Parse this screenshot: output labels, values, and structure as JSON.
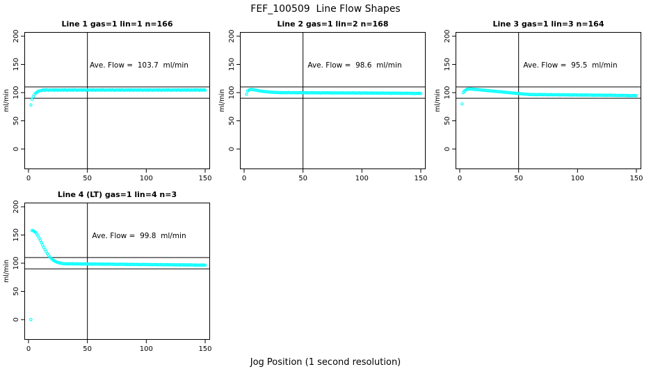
{
  "page": {
    "title": "FEF_100509  Line Flow Shapes",
    "xlabel": "Jog Position (1 second resolution)"
  },
  "colors": {
    "points": "#00FFFF",
    "lines": "#000000"
  },
  "chart_data": [
    {
      "type": "scatter",
      "title": "Line 1 gas=1 lin=1 n=166",
      "annotation": "Ave. Flow =  103.7  ml/min",
      "ave_flow_ml_min": 103.7,
      "n": 166,
      "ylabel": "ml/min",
      "xlim": [
        0,
        150
      ],
      "ylim": [
        0,
        200
      ],
      "xticks": [
        0,
        50,
        100,
        150
      ],
      "yticks": [
        0,
        50,
        100,
        150,
        200
      ],
      "hlines": [
        90,
        110
      ],
      "vlines": [
        50
      ],
      "point_color": "#00FFFF",
      "series": {
        "x_start": 2,
        "x_step": 1,
        "y": [
          78,
          88,
          93,
          96.5,
          99,
          100.5,
          102,
          102.8,
          103.4,
          103.8,
          104.5,
          104.9,
          104.2,
          105.1,
          104.6,
          104.1,
          104.8,
          104.4,
          104.5,
          104.9,
          104.2,
          105.1,
          104.6,
          104.1,
          104.8,
          104.4,
          104.5,
          104.9,
          104.2,
          105.1,
          104.6,
          104.1,
          104.8,
          104.4,
          104.5,
          104.9,
          104.2,
          105.1,
          104.6,
          104.1,
          104.8,
          104.4,
          104.5,
          104.9,
          104.2,
          105.1,
          104.6,
          104.1,
          104.8,
          104.4,
          104.5,
          104.9,
          104.2,
          105.1,
          104.6,
          104.1,
          104.8,
          104.4,
          104.5,
          104.9,
          104.2,
          105.1,
          104.6,
          104.1,
          104.8,
          104.4,
          104.5,
          104.9,
          104.2,
          105.1,
          104.6,
          104.1,
          104.8,
          104.4,
          104.5,
          104.9,
          104.2,
          105.1,
          104.6,
          104.1,
          104.8,
          104.4,
          104.5,
          104.9,
          104.2,
          105.1,
          104.6,
          104.1,
          104.8,
          104.4,
          104.5,
          104.9,
          104.2,
          105.1,
          104.6,
          104.1,
          104.8,
          104.4,
          104.5,
          104.9,
          104.2,
          105.1,
          104.6,
          104.1,
          104.8,
          104.4,
          104.5,
          104.9,
          104.2,
          105.1,
          104.6,
          104.1,
          104.8,
          104.4,
          104.5,
          104.9,
          104.2,
          105.1,
          104.6,
          104.1,
          104.8,
          104.4,
          104.5,
          104.9,
          104.2,
          105.1,
          104.6,
          104.1,
          104.8,
          104.4,
          104.5,
          104.9,
          104.2,
          105.1,
          104.6,
          104.1,
          104.8,
          104.4,
          104.5,
          104.9,
          104.2,
          105.1,
          104.6,
          104.1,
          104.8,
          104.4,
          104.5,
          104.9,
          104.2
        ]
      }
    },
    {
      "type": "scatter",
      "title": "Line 2 gas=1 lin=2 n=168",
      "annotation": "Ave. Flow =  98.6  ml/min",
      "ave_flow_ml_min": 98.6,
      "n": 168,
      "ylabel": "ml/min",
      "xlim": [
        0,
        150
      ],
      "ylim": [
        0,
        200
      ],
      "xticks": [
        0,
        50,
        100,
        150
      ],
      "yticks": [
        0,
        50,
        100,
        150,
        200
      ],
      "hlines": [
        90,
        110
      ],
      "vlines": [
        50
      ],
      "point_color": "#00FFFF",
      "series": {
        "x_start": 2,
        "x_step": 1,
        "y": [
          97,
          103,
          104.5,
          105.3,
          105.6,
          105.4,
          105.1,
          104.7,
          104.3,
          103.9,
          103.5,
          103.1,
          102.8,
          102.5,
          102.2,
          101.9,
          101.7,
          101.5,
          101.3,
          101.1,
          100.9,
          100.8,
          100.6,
          100.5,
          100.4,
          100.3,
          100.2,
          100.1,
          100,
          99.9,
          100.2,
          99.7,
          100.1,
          99.6,
          100,
          99.8,
          100.2,
          99.7,
          99.9,
          99.8,
          100.1,
          99.6,
          100,
          99.5,
          99.9,
          99.7,
          100.1,
          99.6,
          99.8,
          99.7,
          100,
          99.5,
          99.9,
          99.4,
          99.8,
          99.6,
          100,
          99.5,
          99.7,
          99.6,
          99.9,
          99.4,
          99.8,
          99.3,
          99.7,
          99.5,
          99.9,
          99.4,
          99.6,
          99.5,
          99.8,
          99.3,
          99.7,
          99.2,
          99.6,
          99.4,
          99.8,
          99.3,
          99.5,
          99.4,
          99.7,
          99.2,
          99.6,
          99.1,
          99.5,
          99.3,
          99.7,
          99.2,
          99.4,
          99.3,
          99.6,
          99.1,
          99.5,
          99,
          99.4,
          99.2,
          99.6,
          99.1,
          99.3,
          99.2,
          99.5,
          99,
          99.4,
          98.9,
          99.3,
          99.1,
          99.5,
          99,
          99.2,
          99.1,
          99.4,
          98.9,
          99.3,
          98.8,
          99.2,
          99,
          99.4,
          98.9,
          99.1,
          99,
          99.3,
          98.8,
          99.2,
          98.7,
          99.1,
          98.9,
          99.3,
          98.8,
          99,
          98.8,
          99.1,
          98.6,
          99,
          98.5,
          98.9,
          98.7,
          99.1,
          98.6,
          98.8,
          98.6,
          98.9,
          98.4,
          98.8,
          98.3,
          98.7,
          98.5,
          98.9,
          98.4,
          98.6
        ]
      }
    },
    {
      "type": "scatter",
      "title": "Line 3 gas=1 lin=3 n=164",
      "annotation": "Ave. Flow =  95.5  ml/min",
      "ave_flow_ml_min": 95.5,
      "n": 164,
      "ylabel": "ml/min",
      "xlim": [
        0,
        150
      ],
      "ylim": [
        0,
        200
      ],
      "xticks": [
        0,
        50,
        100,
        150
      ],
      "yticks": [
        0,
        50,
        100,
        150,
        200
      ],
      "hlines": [
        90,
        110
      ],
      "vlines": [
        50
      ],
      "point_color": "#00FFFF",
      "series": {
        "x_start": 2,
        "x_step": 1,
        "y": [
          80,
          100,
          103,
          104.5,
          105.5,
          106,
          106.3,
          106.4,
          106.3,
          106.1,
          105.9,
          105.7,
          105.5,
          105.3,
          105.1,
          104.9,
          104.7,
          104.5,
          104.3,
          104.1,
          103.9,
          103.7,
          103.5,
          103.3,
          103.1,
          102.9,
          102.7,
          102.5,
          102.3,
          102.1,
          101.9,
          101.7,
          101.5,
          101.3,
          101.1,
          100.9,
          100.7,
          100.5,
          100.3,
          100.1,
          99.9,
          99.7,
          99.5,
          99.3,
          99.1,
          98.9,
          98.7,
          98.5,
          98.3,
          98.1,
          97.9,
          97.7,
          97.5,
          97.4,
          97.2,
          97.1,
          96.9,
          96.8,
          96.6,
          96.5,
          96.8,
          96.3,
          96.7,
          96.2,
          96.6,
          96.4,
          96.8,
          96.3,
          96.5,
          96.3,
          96.6,
          96.1,
          96.5,
          96,
          96.4,
          96.2,
          96.6,
          96.1,
          96.3,
          96.1,
          96.4,
          95.9,
          96.3,
          95.8,
          96.2,
          96,
          96.4,
          95.9,
          96.1,
          95.9,
          96.2,
          95.7,
          96.1,
          95.6,
          96,
          95.8,
          96.2,
          95.7,
          95.9,
          95.7,
          96,
          95.5,
          95.9,
          95.4,
          95.8,
          95.6,
          96,
          95.5,
          95.7,
          95.5,
          95.8,
          95.3,
          95.7,
          95.2,
          95.6,
          95.4,
          95.8,
          95.3,
          95.5,
          95.3,
          95.6,
          95.1,
          95.5,
          95,
          95.4,
          95.2,
          95.6,
          95.1,
          95.3,
          95,
          95.3,
          94.8,
          95.2,
          94.7,
          95.1,
          94.9,
          95.3,
          94.8,
          95,
          94.7,
          95,
          94.5,
          94.9,
          94.4,
          94.8,
          94.6,
          95,
          94.5,
          94.7
        ]
      }
    },
    {
      "type": "scatter",
      "title": "Line 4 (LT) gas=1 lin=4 n=3",
      "annotation": "Ave. Flow =  99.8  ml/min",
      "ave_flow_ml_min": 99.8,
      "n": 3,
      "ylabel": "ml/min",
      "xlim": [
        0,
        150
      ],
      "ylim": [
        0,
        200
      ],
      "xticks": [
        0,
        50,
        100,
        150
      ],
      "yticks": [
        0,
        50,
        100,
        150,
        200
      ],
      "hlines": [
        90,
        110
      ],
      "vlines": [
        50
      ],
      "point_color": "#00FFFF",
      "series": {
        "x_start": 2,
        "x_step": 1,
        "y": [
          0,
          158,
          157.5,
          156.2,
          154.5,
          151.8,
          148.5,
          144.8,
          140.8,
          136.6,
          132.4,
          128.2,
          124.2,
          120.4,
          117,
          113.9,
          111.2,
          108.9,
          107,
          105.4,
          104,
          102.9,
          102,
          101.2,
          100.6,
          100.1,
          99.7,
          99.4,
          99.1,
          98.9,
          99.2,
          98.7,
          99.1,
          98.6,
          99,
          98.8,
          99.2,
          98.7,
          98.9,
          98.7,
          99,
          98.5,
          98.9,
          98.4,
          98.8,
          98.6,
          99,
          98.5,
          98.7,
          98.5,
          98.8,
          98.3,
          98.7,
          98.2,
          98.6,
          98.4,
          98.8,
          98.3,
          98.5,
          98.3,
          98.6,
          98.1,
          98.5,
          98,
          98.4,
          98.2,
          98.6,
          98.1,
          98.3,
          98.1,
          98.4,
          97.9,
          98.3,
          97.8,
          98.2,
          98,
          98.4,
          97.9,
          98.1,
          97.9,
          98.2,
          97.7,
          98.1,
          97.6,
          98,
          97.8,
          98.2,
          97.7,
          97.9,
          97.7,
          98,
          97.5,
          97.9,
          97.4,
          97.8,
          97.6,
          98,
          97.5,
          97.7,
          97.5,
          97.8,
          97.3,
          97.7,
          97.2,
          97.6,
          97.4,
          97.8,
          97.3,
          97.5,
          97.3,
          97.6,
          97.1,
          97.5,
          97,
          97.4,
          97.2,
          97.6,
          97.1,
          97.3,
          97.1,
          97.4,
          96.9,
          97.3,
          96.8,
          97.2,
          97,
          97.4,
          96.9,
          97.1,
          96.9,
          97.2,
          96.7,
          97.1,
          96.6,
          97,
          96.8,
          97.2,
          96.7,
          96.9,
          96.6,
          96.9,
          96.4,
          96.8,
          96.3,
          96.7,
          96.5,
          96.9,
          96.4,
          96.6
        ]
      }
    }
  ]
}
